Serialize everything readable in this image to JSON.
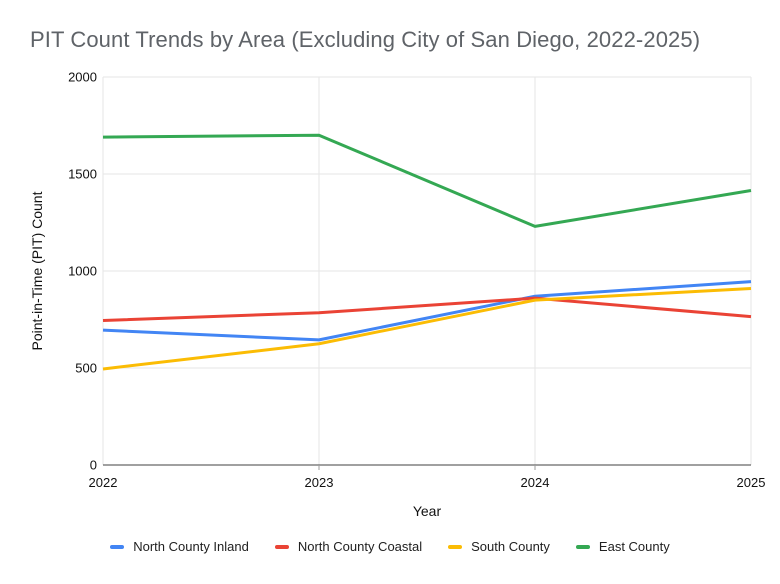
{
  "page": {
    "background": "#ffffff"
  },
  "chart_data": {
    "type": "line",
    "title": "PIT Count Trends by Area (Excluding City of San Diego, 2022-2025)",
    "xlabel": "Year",
    "ylabel": "Point-in-Time (PIT) Count",
    "categories": [
      "2022",
      "2023",
      "2024",
      "2025"
    ],
    "series": [
      {
        "name": "North County Inland",
        "color": "#4285F4",
        "values": [
          695,
          645,
          870,
          945
        ]
      },
      {
        "name": "North County Coastal",
        "color": "#EA4335",
        "values": [
          745,
          785,
          860,
          765
        ]
      },
      {
        "name": "South County",
        "color": "#FBBC04",
        "values": [
          495,
          625,
          850,
          910
        ]
      },
      {
        "name": "East County",
        "color": "#34A853",
        "values": [
          1690,
          1700,
          1230,
          1415
        ]
      }
    ],
    "ylim": [
      0,
      2000
    ],
    "yticks": [
      0,
      500,
      1000,
      1500,
      2000
    ],
    "grid": true,
    "legend_position": "bottom",
    "line_width": 3,
    "colors": {
      "grid": "#e6e6e6",
      "axis": "#424242",
      "tick": "#9e9e9e",
      "tick_label": "#111111",
      "title": "#5f6368",
      "legend_text": "#212121"
    }
  }
}
